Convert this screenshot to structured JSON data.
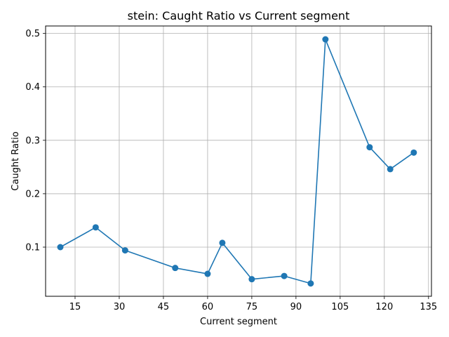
{
  "chart_data": {
    "type": "line",
    "title": "stein: Caught Ratio vs Current segment",
    "xlabel": "Current segment",
    "ylabel": "Caught Ratio",
    "x_ticks": [
      15,
      30,
      45,
      60,
      75,
      90,
      105,
      120,
      135
    ],
    "y_ticks": [
      0.1,
      0.2,
      0.3,
      0.4,
      0.5
    ],
    "xlim": [
      5,
      136
    ],
    "ylim": [
      0.008,
      0.514
    ],
    "grid": true,
    "series": [
      {
        "color": "#1f77b4",
        "marker": "circle",
        "x": [
          10,
          22,
          32,
          49,
          60,
          65,
          75,
          86,
          95,
          100,
          115,
          122,
          130
        ],
        "y": [
          0.1,
          0.137,
          0.094,
          0.061,
          0.05,
          0.108,
          0.04,
          0.046,
          0.032,
          0.489,
          0.287,
          0.246,
          0.277
        ]
      }
    ]
  }
}
